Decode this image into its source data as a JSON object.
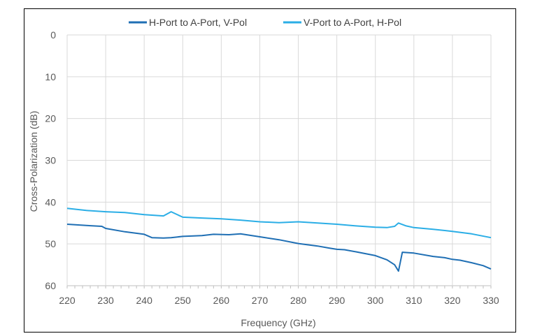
{
  "chart_data": {
    "type": "line",
    "title": "",
    "xlabel": "Frequency (GHz)",
    "ylabel": "Cross-Polarization (dB)",
    "xlim": [
      220,
      330
    ],
    "ylim": [
      0,
      60
    ],
    "y_inverted": true,
    "x_ticks": [
      "220",
      "230",
      "240",
      "250",
      "260",
      "270",
      "280",
      "290",
      "300",
      "310",
      "320",
      "330"
    ],
    "y_ticks": [
      "0",
      "10",
      "20",
      "30",
      "40",
      "50",
      "60"
    ],
    "grid": true,
    "legend_position": "top",
    "series": [
      {
        "name": "H-Port to A-Port, V-Pol",
        "color": "#1F6FB4",
        "x": [
          220,
          225,
          229,
          230,
          235,
          240,
          242,
          245,
          247,
          250,
          255,
          258,
          262,
          265,
          270,
          275,
          280,
          285,
          288,
          290,
          292,
          295,
          300,
          303,
          305,
          306,
          307,
          310,
          315,
          318,
          320,
          322,
          325,
          328,
          330
        ],
        "y": [
          45.3,
          45.6,
          45.8,
          46.3,
          47.1,
          47.7,
          48.5,
          48.6,
          48.5,
          48.2,
          48.0,
          47.7,
          47.8,
          47.6,
          48.3,
          49.0,
          49.9,
          50.5,
          51.0,
          51.3,
          51.4,
          51.9,
          52.8,
          53.8,
          55.0,
          56.5,
          52.0,
          52.2,
          53.0,
          53.3,
          53.7,
          53.9,
          54.5,
          55.2,
          56.0
        ]
      },
      {
        "name": "V-Port to A-Port, H-Pol",
        "color": "#2BAEE6",
        "x": [
          220,
          225,
          230,
          235,
          240,
          245,
          247,
          250,
          255,
          260,
          265,
          270,
          275,
          280,
          285,
          290,
          295,
          300,
          303,
          305,
          306,
          308,
          310,
          315,
          320,
          325,
          330
        ],
        "y": [
          41.5,
          42.0,
          42.3,
          42.5,
          43.0,
          43.3,
          42.3,
          43.6,
          43.8,
          44.0,
          44.3,
          44.7,
          44.9,
          44.7,
          45.0,
          45.3,
          45.7,
          46.0,
          46.1,
          45.8,
          45.0,
          45.7,
          46.1,
          46.5,
          47.0,
          47.6,
          48.5
        ]
      }
    ]
  }
}
